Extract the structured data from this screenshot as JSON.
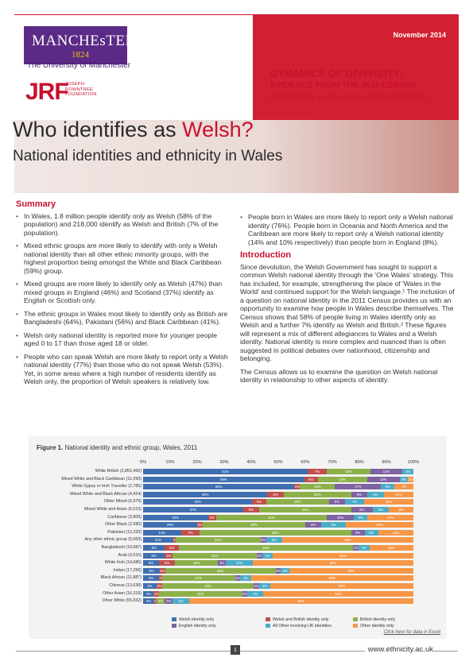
{
  "header": {
    "manchester_word": "MANCHEsTER",
    "manchester_year": "1824",
    "university": "The University of Manchester",
    "jrf_acronym": "JRF",
    "jrf_name": "JOSEPH ROWNTREE FOUNDATION",
    "date": "November 2014",
    "series_line1": "DYNAMICS OF DIVERSITY:",
    "series_line2": "EVIDENCE FROM THE 2011 CENSUS",
    "series_line3": "ESRC Centre on Dynamics of Ethnicity (CoDE)"
  },
  "title": {
    "main_prefix": "Who identifies as ",
    "main_highlight": "Welsh?",
    "subtitle": "National identities and ethnicity in Wales"
  },
  "summary": {
    "heading": "Summary",
    "left_bullets": [
      "In Wales, 1.8 million people identify only as Welsh (58% of the population) and 218,000 identify as Welsh and British (7% of the population).",
      "Mixed ethnic groups are more likely to identify with only a Welsh national identity than all other ethnic minority groups, with the highest proportion being amongst the White and Black Caribbean (59%) group.",
      "Mixed groups are more likely to identify only as Welsh (47%) than mixed groups in England (46%) and Scotland (37%) identify as English or Scottish only.",
      "The ethnic groups in Wales most likely to identify only as British are Bangladeshi (64%), Pakistani (56%) and Black Caribbean (41%).",
      "Welsh only national identity is reported more for younger people aged 0 to 17 than those aged 18 or older.",
      "People who can speak Welsh are more likely to report only a Welsh national identity (77%) than those who do not speak Welsh (53%). Yet, in some areas where a high number of residents identify as Welsh only, the proportion of Welsh speakers is relatively low."
    ],
    "right_bullets": [
      "People born in Wales are more likely to report only a Welsh national identity (76%). People born in Oceania and North America and the Caribbean are more likely to report only a Welsh national identity (14% and 10% respectively) than people born in England (8%)."
    ]
  },
  "introduction": {
    "heading": "Introduction",
    "p1": "Since devolution, the Welsh Government has sought to support a common Welsh national identity through the 'One Wales' strategy. This has included, for example, strengthening the place of 'Wales in the World' and continued support for the Welsh language.¹ The inclusion of a question on national identity in the 2011 Census provides us with an opportunity to examine how people in Wales describe themselves. The Census shows that 58% of people living in Wales identify only as Welsh and a further 7% identify as Welsh and British.² These figures will represent a mix of different allegiances to Wales and a Welsh identity. National identity is more complex and nuanced than is often suggested in political debates over nationhood, citizenship and belonging.",
    "p2": "The Census allows us to examine the question on Welsh national identity in relationship to other aspects of identity."
  },
  "figure": {
    "label": "Figure 1.",
    "caption": " National identity and ethnic group, Wales, 2011",
    "link": "Click here for data in Excel"
  },
  "chart_data": {
    "type": "bar",
    "stacked": true,
    "orientation": "horizontal",
    "x_ticks": [
      "0%",
      "10%",
      "20%",
      "30%",
      "40%",
      "50%",
      "60%",
      "70%",
      "80%",
      "90%",
      "100%"
    ],
    "xlim": [
      0,
      100
    ],
    "categories": [
      "White British (2,855,450)",
      "Mixed White and Black Caribbean (11,099)",
      "White Gypsy or Irish Traveller (2,785)",
      "Mixed White and Black African (4,424)",
      "Other Mixed (6,979)",
      "Mixed White and Asian (6,019)",
      "Caribbean (3,809)",
      "Other Black (2,580)",
      "Pakistani (12,229)",
      "Any other ethnic group (5,663)",
      "Bangladeshi (10,687)",
      "Arab (9,615)",
      "White Irish (14,086)",
      "Indian (17,256)",
      "Black African (11,887)",
      "Chinese (13,638)",
      "Other Asian (16,318)",
      "Other White (55,932)"
    ],
    "series": [
      {
        "name": "Welsh identity only",
        "color": "#3f6fb0",
        "values": [
          61,
          59,
          56,
          46,
          40,
          37,
          24,
          20,
          14,
          11,
          8,
          8,
          6,
          6,
          6,
          5,
          4,
          4
        ]
      },
      {
        "name": "Welsh and British identity only",
        "color": "#c0504d",
        "values": [
          7,
          5,
          2,
          6,
          5,
          6,
          3,
          2,
          7,
          1,
          5,
          3,
          6,
          2,
          1,
          2,
          2,
          1
        ]
      },
      {
        "name": "British identity only",
        "color": "#8db04a",
        "values": [
          16,
          18,
          13,
          25,
          23,
          34,
          41,
          38,
          56,
          31,
          64,
          31,
          16,
          40,
          27,
          34,
          31,
          3
        ]
      },
      {
        "name": "English identity only",
        "color": "#7e62a1",
        "values": [
          12,
          12,
          17,
          6,
          6,
          8,
          10,
          6,
          5,
          2,
          2,
          2,
          3,
          2,
          2,
          2,
          2,
          3
        ]
      },
      {
        "name": "All Other involving UK identities",
        "color": "#4bacc6",
        "values": [
          4,
          3,
          5,
          6,
          7,
          6,
          5,
          9,
          5,
          6,
          4,
          4,
          10,
          3,
          4,
          4,
          6,
          6
        ]
      },
      {
        "name": "Other identity only",
        "color": "#f79646",
        "values": [
          0,
          2,
          7,
          11,
          18,
          9,
          17,
          25,
          13,
          48,
          16,
          52,
          60,
          45,
          60,
          53,
          56,
          83
        ]
      }
    ]
  },
  "footer": {
    "page": "1",
    "site": "www.ethnicity.ac.uk"
  }
}
